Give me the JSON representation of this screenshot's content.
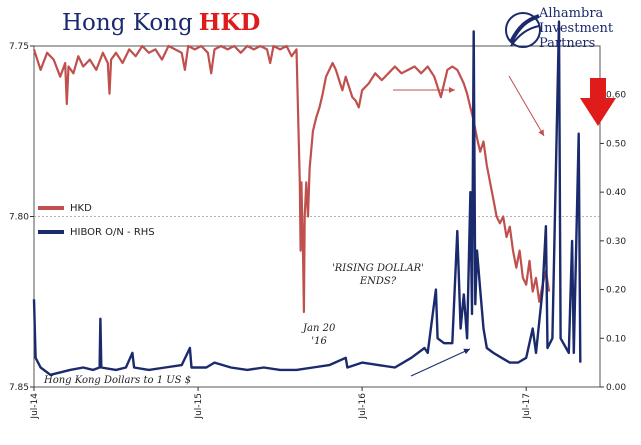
{
  "header": {
    "title_main": "Hong Kong",
    "title_accent": "HKD",
    "logo_lines": [
      "Alhambra",
      "Investment",
      "Partners"
    ]
  },
  "legend": [
    {
      "label": "HKD",
      "color": "#c0504d"
    },
    {
      "label": "HIBOR O/N - RHS",
      "color": "#1a2a6c"
    }
  ],
  "annotations": {
    "rising_dollar": [
      "'RISING DOLLAR'",
      "ENDS?"
    ],
    "jan20": [
      "Jan 20",
      "'16"
    ],
    "units": "Hong Kong Dollars to 1 US $"
  },
  "chart_data": {
    "type": "line",
    "x_ticks": [
      "Jul-14",
      "Jul-15",
      "Jul-16",
      "Jul-17"
    ],
    "x_domain": [
      0,
      3.45
    ],
    "left_axis": {
      "ticks": [
        7.75,
        7.8,
        7.85
      ],
      "labels": [
        "7.75",
        "7.80",
        "7.85"
      ],
      "range_top_to_bottom": [
        7.75,
        7.85
      ],
      "reversed": true
    },
    "right_axis": {
      "ticks": [
        0.0,
        0.1,
        0.2,
        0.3,
        0.4,
        0.5,
        0.6
      ],
      "labels": [
        "0.00",
        "0.10",
        "0.20",
        "0.30",
        "0.40",
        "0.50",
        "0.60"
      ],
      "range": [
        0,
        0.7
      ]
    },
    "grid": "dotted line at 7.80",
    "series": [
      {
        "name": "HKD",
        "axis": "left",
        "color": "#c0504d",
        "points": [
          [
            0,
            7.751
          ],
          [
            0.04,
            7.757
          ],
          [
            0.08,
            7.752
          ],
          [
            0.12,
            7.754
          ],
          [
            0.16,
            7.759
          ],
          [
            0.19,
            7.755
          ],
          [
            0.2,
            7.767
          ],
          [
            0.21,
            7.756
          ],
          [
            0.24,
            7.758
          ],
          [
            0.27,
            7.753
          ],
          [
            0.3,
            7.756
          ],
          [
            0.34,
            7.754
          ],
          [
            0.38,
            7.757
          ],
          [
            0.42,
            7.752
          ],
          [
            0.45,
            7.755
          ],
          [
            0.46,
            7.764
          ],
          [
            0.47,
            7.754
          ],
          [
            0.5,
            7.752
          ],
          [
            0.54,
            7.755
          ],
          [
            0.58,
            7.751
          ],
          [
            0.62,
            7.753
          ],
          [
            0.66,
            7.75
          ],
          [
            0.7,
            7.752
          ],
          [
            0.74,
            7.751
          ],
          [
            0.78,
            7.754
          ],
          [
            0.82,
            7.75
          ],
          [
            0.86,
            7.751
          ],
          [
            0.9,
            7.752
          ],
          [
            0.92,
            7.757
          ],
          [
            0.94,
            7.75
          ],
          [
            0.98,
            7.751
          ],
          [
            1.02,
            7.75
          ],
          [
            1.06,
            7.752
          ],
          [
            1.08,
            7.758
          ],
          [
            1.1,
            7.751
          ],
          [
            1.14,
            7.75
          ],
          [
            1.18,
            7.751
          ],
          [
            1.22,
            7.75
          ],
          [
            1.26,
            7.752
          ],
          [
            1.3,
            7.75
          ],
          [
            1.34,
            7.751
          ],
          [
            1.38,
            7.75
          ],
          [
            1.42,
            7.751
          ],
          [
            1.44,
            7.755
          ],
          [
            1.46,
            7.75
          ],
          [
            1.5,
            7.751
          ],
          [
            1.54,
            7.75
          ],
          [
            1.57,
            7.753
          ],
          [
            1.6,
            7.751
          ],
          [
            1.61,
            7.77
          ],
          [
            1.62,
            7.79
          ],
          [
            1.625,
            7.81
          ],
          [
            1.63,
            7.79
          ],
          [
            1.64,
            7.812
          ],
          [
            1.645,
            7.828
          ],
          [
            1.65,
            7.8
          ],
          [
            1.66,
            7.79
          ],
          [
            1.67,
            7.8
          ],
          [
            1.68,
            7.786
          ],
          [
            1.7,
            7.775
          ],
          [
            1.72,
            7.771
          ],
          [
            1.74,
            7.768
          ],
          [
            1.76,
            7.764
          ],
          [
            1.78,
            7.759
          ],
          [
            1.8,
            7.757
          ],
          [
            1.82,
            7.755
          ],
          [
            1.84,
            7.757
          ],
          [
            1.86,
            7.76
          ],
          [
            1.88,
            7.763
          ],
          [
            1.9,
            7.759
          ],
          [
            1.92,
            7.762
          ],
          [
            1.94,
            7.765
          ],
          [
            1.96,
            7.766
          ],
          [
            1.98,
            7.768
          ],
          [
            2.0,
            7.763
          ],
          [
            2.04,
            7.761
          ],
          [
            2.08,
            7.758
          ],
          [
            2.12,
            7.76
          ],
          [
            2.16,
            7.758
          ],
          [
            2.2,
            7.756
          ],
          [
            2.24,
            7.758
          ],
          [
            2.28,
            7.757
          ],
          [
            2.32,
            7.756
          ],
          [
            2.36,
            7.758
          ],
          [
            2.4,
            7.756
          ],
          [
            2.44,
            7.759
          ],
          [
            2.48,
            7.765
          ],
          [
            2.5,
            7.761
          ],
          [
            2.52,
            7.757
          ],
          [
            2.55,
            7.756
          ],
          [
            2.58,
            7.757
          ],
          [
            2.6,
            7.759
          ],
          [
            2.62,
            7.761
          ],
          [
            2.64,
            7.764
          ],
          [
            2.66,
            7.768
          ],
          [
            2.68,
            7.772
          ],
          [
            2.7,
            7.777
          ],
          [
            2.72,
            7.781
          ],
          [
            2.74,
            7.778
          ],
          [
            2.76,
            7.785
          ],
          [
            2.78,
            7.79
          ],
          [
            2.8,
            7.795
          ],
          [
            2.82,
            7.8
          ],
          [
            2.84,
            7.802
          ],
          [
            2.86,
            7.8
          ],
          [
            2.88,
            7.806
          ],
          [
            2.9,
            7.803
          ],
          [
            2.92,
            7.81
          ],
          [
            2.94,
            7.815
          ],
          [
            2.96,
            7.81
          ],
          [
            2.98,
            7.818
          ],
          [
            3.0,
            7.82
          ],
          [
            3.02,
            7.813
          ],
          [
            3.04,
            7.822
          ],
          [
            3.06,
            7.818
          ],
          [
            3.08,
            7.825
          ],
          [
            3.1,
            7.82
          ],
          [
            3.12,
            7.816
          ],
          [
            3.14,
            7.822
          ]
        ]
      },
      {
        "name": "HIBOR O/N - RHS",
        "axis": "right",
        "color": "#1a2a6c",
        "points": [
          [
            0,
            0.18
          ],
          [
            0.01,
            0.06
          ],
          [
            0.04,
            0.04
          ],
          [
            0.1,
            0.025
          ],
          [
            0.16,
            0.03
          ],
          [
            0.22,
            0.035
          ],
          [
            0.3,
            0.04
          ],
          [
            0.36,
            0.035
          ],
          [
            0.4,
            0.04
          ],
          [
            0.405,
            0.14
          ],
          [
            0.41,
            0.04
          ],
          [
            0.5,
            0.035
          ],
          [
            0.56,
            0.04
          ],
          [
            0.6,
            0.07
          ],
          [
            0.61,
            0.04
          ],
          [
            0.7,
            0.035
          ],
          [
            0.8,
            0.04
          ],
          [
            0.9,
            0.045
          ],
          [
            0.95,
            0.08
          ],
          [
            0.96,
            0.04
          ],
          [
            1.05,
            0.04
          ],
          [
            1.1,
            0.05
          ],
          [
            1.2,
            0.04
          ],
          [
            1.3,
            0.035
          ],
          [
            1.4,
            0.04
          ],
          [
            1.5,
            0.035
          ],
          [
            1.6,
            0.035
          ],
          [
            1.7,
            0.04
          ],
          [
            1.8,
            0.045
          ],
          [
            1.9,
            0.06
          ],
          [
            1.91,
            0.04
          ],
          [
            2.0,
            0.05
          ],
          [
            2.1,
            0.045
          ],
          [
            2.2,
            0.04
          ],
          [
            2.3,
            0.06
          ],
          [
            2.38,
            0.08
          ],
          [
            2.4,
            0.07
          ],
          [
            2.45,
            0.2
          ],
          [
            2.46,
            0.1
          ],
          [
            2.5,
            0.09
          ],
          [
            2.55,
            0.09
          ],
          [
            2.58,
            0.32
          ],
          [
            2.6,
            0.12
          ],
          [
            2.62,
            0.19
          ],
          [
            2.64,
            0.1
          ],
          [
            2.66,
            0.4
          ],
          [
            2.67,
            0.15
          ],
          [
            2.68,
            0.73
          ],
          [
            2.69,
            0.17
          ],
          [
            2.7,
            0.28
          ],
          [
            2.72,
            0.2
          ],
          [
            2.74,
            0.12
          ],
          [
            2.76,
            0.08
          ],
          [
            2.8,
            0.07
          ],
          [
            2.85,
            0.06
          ],
          [
            2.9,
            0.05
          ],
          [
            2.95,
            0.05
          ],
          [
            3.0,
            0.06
          ],
          [
            3.04,
            0.12
          ],
          [
            3.06,
            0.07
          ],
          [
            3.1,
            0.2
          ],
          [
            3.12,
            0.33
          ],
          [
            3.13,
            0.08
          ],
          [
            3.16,
            0.1
          ],
          [
            3.2,
            0.75
          ],
          [
            3.21,
            0.1
          ],
          [
            3.26,
            0.07
          ],
          [
            3.28,
            0.3
          ],
          [
            3.29,
            0.07
          ],
          [
            3.32,
            0.52
          ],
          [
            3.33,
            0.05
          ]
        ]
      }
    ]
  }
}
